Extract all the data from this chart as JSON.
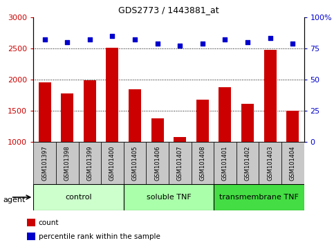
{
  "title": "GDS2773 / 1443881_at",
  "samples": [
    "GSM101397",
    "GSM101398",
    "GSM101399",
    "GSM101400",
    "GSM101405",
    "GSM101406",
    "GSM101407",
    "GSM101408",
    "GSM101401",
    "GSM101402",
    "GSM101403",
    "GSM101404"
  ],
  "counts": [
    1960,
    1780,
    1990,
    2510,
    1840,
    1380,
    1080,
    1680,
    1880,
    1610,
    2480,
    1500
  ],
  "percentiles": [
    82,
    80,
    82,
    85,
    82,
    79,
    77,
    79,
    82,
    80,
    83,
    79
  ],
  "bar_color": "#cc0000",
  "dot_color": "#0000cc",
  "ylim_left": [
    1000,
    3000
  ],
  "ylim_right": [
    0,
    100
  ],
  "yticks_left": [
    1000,
    1500,
    2000,
    2500,
    3000
  ],
  "yticks_right": [
    0,
    25,
    50,
    75,
    100
  ],
  "groups": [
    {
      "label": "control",
      "start": 0,
      "end": 4,
      "color": "#ccffcc"
    },
    {
      "label": "soluble TNF",
      "start": 4,
      "end": 8,
      "color": "#aaffaa"
    },
    {
      "label": "transmembrane TNF",
      "start": 8,
      "end": 12,
      "color": "#44dd44"
    }
  ],
  "agent_label": "agent",
  "legend_count_label": "count",
  "legend_pct_label": "percentile rank within the sample",
  "tick_area_color": "#c8c8c8",
  "background_color": "#ffffff",
  "gridline_vals": [
    1500,
    2000,
    2500
  ],
  "bar_width": 0.55
}
